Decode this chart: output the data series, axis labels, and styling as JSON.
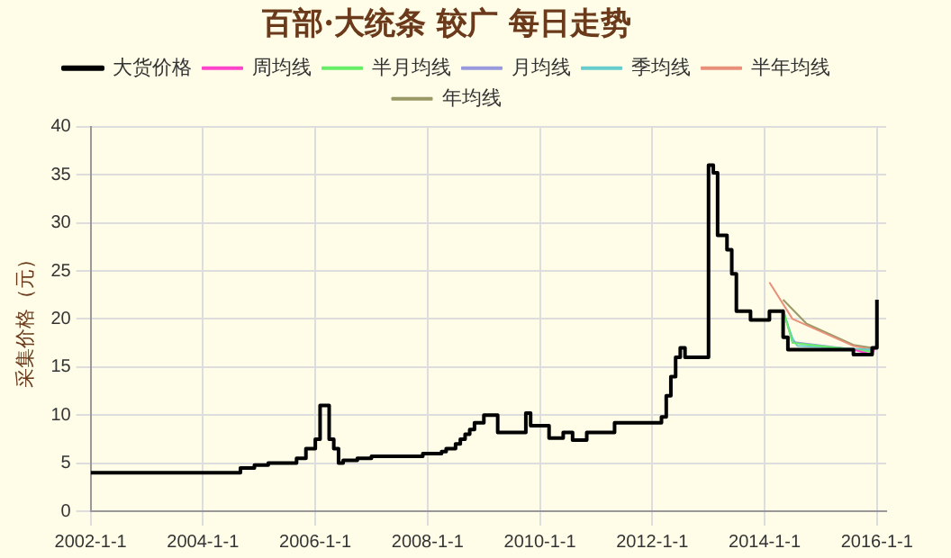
{
  "chart_data": {
    "type": "line",
    "title": "百部·大统条 较广 每日走势",
    "ylabel": "采集价格（元）",
    "xlim": [
      "2002-01-01",
      "2016-03-01"
    ],
    "xticks": [
      {
        "value": "2002-01-01",
        "label": "2002-1-1"
      },
      {
        "value": "2004-01-01",
        "label": "2004-1-1"
      },
      {
        "value": "2006-01-01",
        "label": "2006-1-1"
      },
      {
        "value": "2008-01-01",
        "label": "2008-1-1"
      },
      {
        "value": "2010-01-01",
        "label": "2010-1-1"
      },
      {
        "value": "2012-01-01",
        "label": "2012-1-1"
      },
      {
        "value": "2014-01-01",
        "label": "2014-1-1"
      },
      {
        "value": "2016-01-01",
        "label": "2016-1-1"
      }
    ],
    "ylim": [
      0,
      40
    ],
    "yticks": [
      0,
      5,
      10,
      15,
      20,
      25,
      30,
      35,
      40
    ],
    "grid": true,
    "legend": "top",
    "marker": "none",
    "line_style": "solid",
    "series": [
      {
        "name": "大货价格",
        "type": "step",
        "color": "#000000",
        "x": [
          "2002-01",
          "2004-09",
          "2004-12",
          "2005-03",
          "2005-09",
          "2005-11",
          "2006-01",
          "2006-02",
          "2006-04",
          "2006-05",
          "2006-06",
          "2006-07",
          "2006-10",
          "2007-01",
          "2007-12",
          "2008-04",
          "2008-05",
          "2008-07",
          "2008-08",
          "2008-09",
          "2008-10",
          "2008-11",
          "2009-01",
          "2009-04",
          "2009-10",
          "2009-11",
          "2010-03",
          "2010-06",
          "2010-08",
          "2010-11",
          "2011-05",
          "2012-03",
          "2012-04",
          "2012-05",
          "2012-06",
          "2012-07",
          "2012-08",
          "2013-01",
          "2013-02",
          "2013-03",
          "2013-05",
          "2013-06",
          "2013-07",
          "2013-10",
          "2014-02",
          "2014-05",
          "2014-06",
          "2015-08",
          "2015-12",
          "2016-01"
        ],
        "values": [
          4.0,
          4.5,
          4.8,
          5.0,
          5.5,
          6.5,
          7.5,
          11,
          7.5,
          6.5,
          5.0,
          5.3,
          5.5,
          5.7,
          6.0,
          6.2,
          6.5,
          7.0,
          7.5,
          8.0,
          8.5,
          9.2,
          10.0,
          8.2,
          10.2,
          8.9,
          7.6,
          8.2,
          7.4,
          8.2,
          9.2,
          9.8,
          12.0,
          14.0,
          16.0,
          17.0,
          16.0,
          36.0,
          35.2,
          28.7,
          27.2,
          24.7,
          20.8,
          19.9,
          20.8,
          18.1,
          16.8,
          16.3,
          17.0,
          22.0
        ]
      },
      {
        "name": "周均线",
        "color": "#ff44cc",
        "x": [
          "2015-08",
          "2015-12",
          "2016-01"
        ],
        "values": [
          16.8,
          16.3,
          17.5
        ]
      },
      {
        "name": "半月均线",
        "color": "#66ee66",
        "x": [
          "2014-05",
          "2014-07",
          "2015-12"
        ],
        "values": [
          21.0,
          17.5,
          16.6
        ]
      },
      {
        "name": "月均线",
        "color": "#9999dd",
        "x": [
          "2014-05",
          "2014-07",
          "2015-12"
        ],
        "values": [
          21.0,
          17.6,
          16.6
        ]
      },
      {
        "name": "季均线",
        "color": "#66cccc",
        "x": [
          "2014-05",
          "2014-07",
          "2014-08",
          "2015-12"
        ],
        "values": [
          20.8,
          18.0,
          17.2,
          16.8
        ]
      },
      {
        "name": "半年均线",
        "color": "#e8907a",
        "x": [
          "2014-02",
          "2014-07",
          "2015-08",
          "2015-12"
        ],
        "values": [
          23.8,
          20.0,
          17.2,
          16.8
        ]
      },
      {
        "name": "年均线",
        "color": "#999966",
        "x": [
          "2014-05",
          "2014-10",
          "2015-08",
          "2015-12"
        ],
        "values": [
          22.0,
          19.5,
          17.3,
          17.0
        ]
      }
    ]
  }
}
